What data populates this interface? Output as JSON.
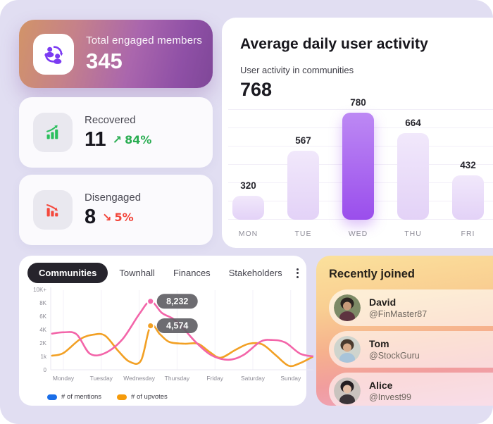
{
  "stats": {
    "engaged": {
      "label": "Total engaged members",
      "value": "345"
    },
    "recovered": {
      "label": "Recovered",
      "value": "11",
      "arrow": "↗",
      "delta": "84%",
      "direction": "up"
    },
    "disengaged": {
      "label": "Disengaged",
      "value": "8",
      "arrow": "↘",
      "delta": "5%",
      "direction": "down"
    }
  },
  "activity": {
    "title": "Average daily user activity",
    "subtitle": "User activity in communities",
    "total": "768"
  },
  "tabs": {
    "items": [
      "Communities",
      "Townhall",
      "Finances",
      "Stakeholders"
    ],
    "active_index": 0
  },
  "recent": {
    "title": "Recently joined",
    "members": [
      {
        "name": "David",
        "handle": "@FinMaster87",
        "avatar": {
          "bg": "#7d8a66",
          "hair": "#2a2320",
          "skin": "#c79a7a",
          "shirt": "#5d3340"
        }
      },
      {
        "name": "Tom",
        "handle": "@StockGuru",
        "avatar": {
          "bg": "#cfd4cd",
          "hair": "#4a3b2e",
          "skin": "#d9ac8a",
          "shirt": "#a8c4da"
        }
      },
      {
        "name": "Alice",
        "handle": "@Invest99",
        "avatar": {
          "bg": "#c9c3be",
          "hair": "#241f22",
          "skin": "#e3c0a8",
          "shirt": "#3a3438"
        }
      }
    ]
  },
  "colors": {
    "accent_purple": "#9a4eec",
    "green": "#2aaf55",
    "red": "#f2453a",
    "tooltip_bg": "#5d5c62"
  },
  "chart_data": [
    {
      "type": "bar",
      "title": "Average daily user activity",
      "subtitle": "User activity in communities",
      "total": 768,
      "categories": [
        "MON",
        "TUE",
        "WED",
        "THU",
        "FRI"
      ],
      "values": [
        320,
        567,
        780,
        664,
        432
      ],
      "highlight_category": "WED",
      "highlight_index": 2,
      "bar_color_default": "#e9dbf8",
      "bar_color_highlight": "#9a4eec",
      "grid": true,
      "legend_position": "none"
    },
    {
      "type": "line",
      "x_labels": [
        "Monday",
        "Tuesday",
        "Wednesday",
        "Thursday",
        "Friday",
        "Saturday",
        "Sunday"
      ],
      "y_tick_labels": [
        "0",
        "1k",
        "2K",
        "4K",
        "6K",
        "8K",
        "10K+"
      ],
      "y_tick_values": [
        0,
        1000,
        2000,
        4000,
        6000,
        8000,
        10000
      ],
      "grid": true,
      "legend_position": "bottom-left",
      "series": [
        {
          "name": "# of mentions",
          "line_color": "#f365a9",
          "legend_color": "#1a6ee8",
          "points": [
            [
              -0.3,
              3400
            ],
            [
              0,
              3600
            ],
            [
              0.35,
              3300
            ],
            [
              0.7,
              1200
            ],
            [
              1.1,
              1250
            ],
            [
              1.55,
              2500
            ],
            [
              2.0,
              6300
            ],
            [
              2.3,
              8232
            ],
            [
              2.6,
              6500
            ],
            [
              2.9,
              5600
            ],
            [
              3.15,
              4300
            ],
            [
              3.5,
              2100
            ],
            [
              3.9,
              1100
            ],
            [
              4.35,
              750
            ],
            [
              4.75,
              1100
            ],
            [
              5.2,
              2200
            ],
            [
              5.5,
              2450
            ],
            [
              5.85,
              2100
            ],
            [
              6.25,
              1200
            ],
            [
              6.6,
              1000
            ]
          ],
          "callout": {
            "label": "8,232",
            "day": 2.3,
            "value": 8232
          }
        },
        {
          "name": "# of upvotes",
          "line_color": "#f2a024",
          "legend_color": "#f59b0b",
          "points": [
            [
              -0.3,
              1050
            ],
            [
              0,
              1250
            ],
            [
              0.45,
              2600
            ],
            [
              0.8,
              3250
            ],
            [
              1.1,
              3100
            ],
            [
              1.45,
              1400
            ],
            [
              1.75,
              600
            ],
            [
              2.05,
              700
            ],
            [
              2.3,
              4574
            ],
            [
              2.55,
              3300
            ],
            [
              2.8,
              2150
            ],
            [
              3.2,
              1950
            ],
            [
              3.55,
              1950
            ],
            [
              3.85,
              1350
            ],
            [
              4.15,
              900
            ],
            [
              4.55,
              1500
            ],
            [
              4.9,
              1950
            ],
            [
              5.25,
              1900
            ],
            [
              5.6,
              1100
            ],
            [
              5.95,
              300
            ],
            [
              6.25,
              500
            ],
            [
              6.6,
              1000
            ]
          ],
          "callout": {
            "label": "4,574",
            "day": 2.3,
            "value": 4574
          }
        }
      ]
    }
  ]
}
